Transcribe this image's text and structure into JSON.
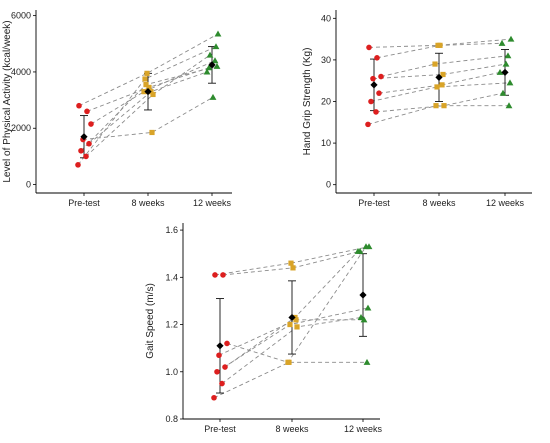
{
  "colors": {
    "pre_test": "#dd1f1f",
    "weeks_8": "#d9a428",
    "weeks_12": "#2e8b2e",
    "mean": "#000000",
    "line": "#8c8c8c"
  },
  "chart_data": [
    {
      "type": "scatter",
      "title": "",
      "xlabel": "",
      "ylabel": "Level of Physical Activity (kcal/week)",
      "categories": [
        "Pre-test",
        "8 weeks",
        "12 weeks"
      ],
      "yticks": [
        0,
        2000,
        4000,
        6000
      ],
      "ylim": [
        -300,
        6200
      ],
      "grid": false,
      "subjects": [
        [
          700,
          3750,
          4900
        ],
        [
          1000,
          3200,
          4600
        ],
        [
          1200,
          3550,
          4200
        ],
        [
          1450,
          3300,
          4000
        ],
        [
          1600,
          1850,
          3100
        ],
        [
          2150,
          3300,
          4400
        ],
        [
          2600,
          3450,
          4150
        ],
        [
          2800,
          3950,
          5350
        ]
      ],
      "mean": [
        1700,
        3300,
        4250
      ],
      "sd": [
        750,
        650,
        650
      ]
    },
    {
      "type": "scatter",
      "title": "",
      "xlabel": "",
      "ylabel": "Hand Grip Strength (Kg)",
      "categories": [
        "Pre-test",
        "8 weeks",
        "12 weeks"
      ],
      "yticks": [
        0,
        10,
        20,
        30,
        40
      ],
      "ylim": [
        -2,
        42
      ],
      "grid": false,
      "subjects": [
        [
          14.5,
          19,
          19
        ],
        [
          17.5,
          19,
          22
        ],
        [
          20,
          23.5,
          24.5
        ],
        [
          22,
          24,
          27
        ],
        [
          25.5,
          26.5,
          29
        ],
        [
          26,
          29,
          31
        ],
        [
          30.5,
          33.5,
          34
        ],
        [
          33,
          33.5,
          35
        ]
      ],
      "mean": [
        24,
        25.8,
        27
      ],
      "sd": [
        6.2,
        5.8,
        5.5
      ]
    },
    {
      "type": "scatter",
      "title": "",
      "xlabel": "",
      "ylabel": "Gait Speed (m/s)",
      "categories": [
        "Pre-test",
        "8 weeks",
        "12 weeks"
      ],
      "yticks": [
        0.8,
        1.0,
        1.2,
        1.4,
        1.6
      ],
      "ylim": [
        0.8,
        1.63
      ],
      "grid": false,
      "subjects": [
        [
          0.89,
          1.04,
          1.04
        ],
        [
          0.95,
          1.19,
          1.23
        ],
        [
          1.0,
          1.2,
          1.27
        ],
        [
          1.02,
          1.23,
          1.51
        ],
        [
          1.07,
          1.22,
          1.22
        ],
        [
          1.12,
          1.04,
          1.53
        ],
        [
          1.41,
          1.44,
          1.51
        ],
        [
          1.41,
          1.46,
          1.53
        ]
      ],
      "mean": [
        1.11,
        1.23,
        1.325
      ],
      "sd": [
        0.2,
        0.155,
        0.175
      ]
    }
  ]
}
